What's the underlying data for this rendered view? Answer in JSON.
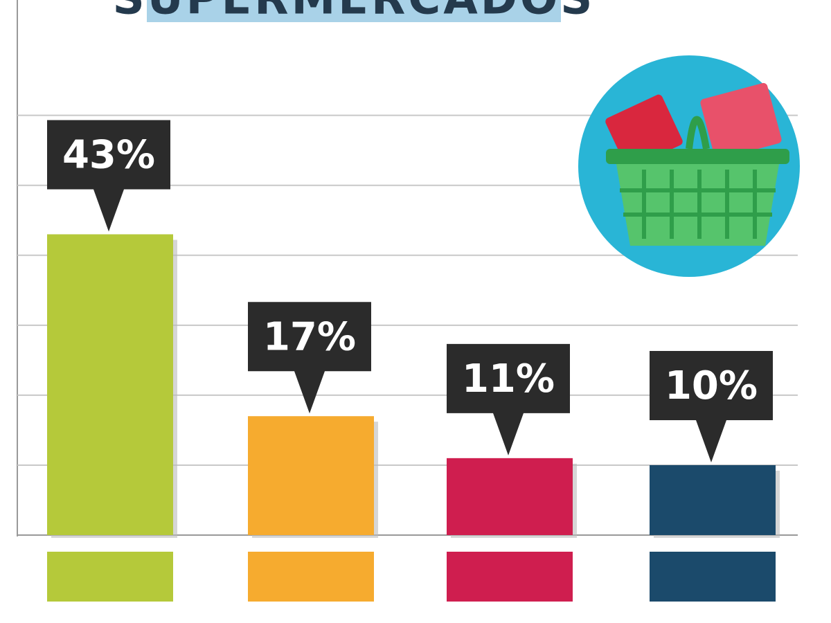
{
  "chart_data": {
    "type": "bar",
    "title": "SUPERMERCADOS",
    "values": [
      43,
      17,
      11,
      10
    ],
    "value_labels": [
      "43%",
      "17%",
      "11%",
      "10%"
    ],
    "colors": [
      "#b5c93a",
      "#f6ab2f",
      "#cf1e4f",
      "#1b4a6b"
    ],
    "ylim": [
      0,
      76
    ],
    "yticks": [
      0,
      10,
      20,
      30,
      40,
      50,
      60
    ],
    "grid": true
  }
}
